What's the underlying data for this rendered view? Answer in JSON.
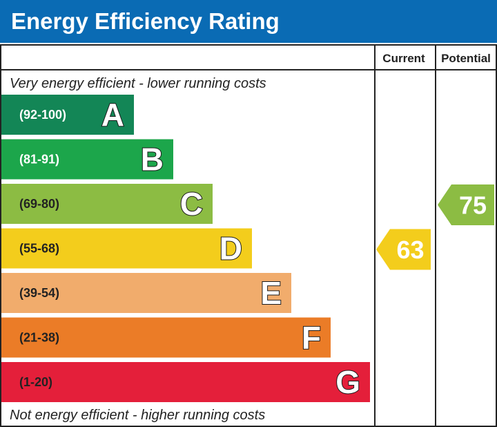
{
  "title": "Energy Efficiency Rating",
  "columns": {
    "current": "Current",
    "potential": "Potential"
  },
  "top_note": "Very energy efficient - lower running costs",
  "bottom_note": "Not energy efficient - higher running costs",
  "colors": {
    "header_bg": "#0a6bb4",
    "A": "#138656",
    "B": "#1ca64b",
    "C": "#8cbc43",
    "D": "#f3cd1c",
    "E": "#f1ac6c",
    "F": "#eb7c27",
    "G": "#e41f3a"
  },
  "chart_data": {
    "type": "bar",
    "title": "Energy Efficiency Rating",
    "categories": [
      "A",
      "B",
      "C",
      "D",
      "E",
      "F",
      "G"
    ],
    "bands": [
      {
        "letter": "A",
        "range": "(92-100)",
        "min": 92,
        "max": 100,
        "color": "#138656",
        "range_color": "#ffffff"
      },
      {
        "letter": "B",
        "range": "(81-91)",
        "min": 81,
        "max": 91,
        "color": "#1ca64b",
        "range_color": "#ffffff"
      },
      {
        "letter": "C",
        "range": "(69-80)",
        "min": 69,
        "max": 80,
        "color": "#8cbc43",
        "range_color": "#222222"
      },
      {
        "letter": "D",
        "range": "(55-68)",
        "min": 55,
        "max": 68,
        "color": "#f3cd1c",
        "range_color": "#222222"
      },
      {
        "letter": "E",
        "range": "(39-54)",
        "min": 39,
        "max": 54,
        "color": "#f1ac6c",
        "range_color": "#222222"
      },
      {
        "letter": "F",
        "range": "(21-38)",
        "min": 21,
        "max": 38,
        "color": "#eb7c27",
        "range_color": "#222222"
      },
      {
        "letter": "G",
        "range": "(1-20)",
        "min": 1,
        "max": 20,
        "color": "#e41f3a",
        "range_color": "#222222"
      }
    ],
    "ratings": [
      {
        "column": "Current",
        "value": 63,
        "band": "D",
        "color": "#f3cd1c"
      },
      {
        "column": "Potential",
        "value": 75,
        "band": "C",
        "color": "#8cbc43"
      }
    ]
  }
}
